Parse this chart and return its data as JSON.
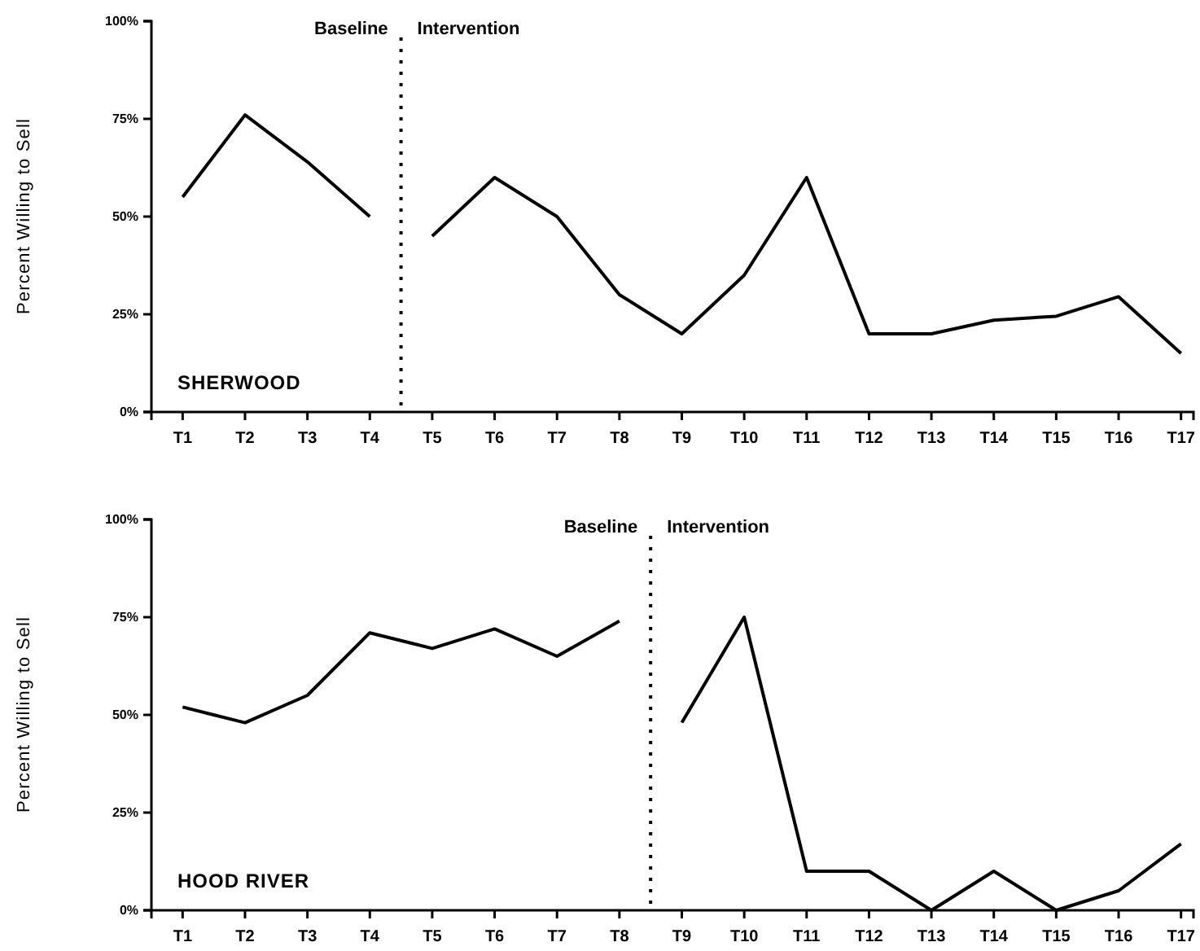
{
  "chart_data": [
    {
      "type": "line",
      "title": "SHERWOOD",
      "ylabel": "Percent Willing to Sell",
      "categories": [
        "T1",
        "T2",
        "T3",
        "T4",
        "T5",
        "T6",
        "T7",
        "T8",
        "T9",
        "T10",
        "T11",
        "T12",
        "T13",
        "T14",
        "T15",
        "T16",
        "T17"
      ],
      "ylim": [
        0,
        100
      ],
      "yticks": [
        {
          "value": 0,
          "label": "0%"
        },
        {
          "value": 25,
          "label": "25%"
        },
        {
          "value": 50,
          "label": "50%"
        },
        {
          "value": 75,
          "label": "75%"
        },
        {
          "value": 100,
          "label": "100%"
        }
      ],
      "grid": false,
      "marker": "none",
      "line_style": "solid",
      "series": [
        {
          "color": "#000000",
          "values": [
            55,
            76,
            64,
            50,
            null,
            null,
            null,
            null,
            null,
            null,
            null,
            null,
            null,
            null,
            null,
            null,
            null
          ]
        },
        {
          "color": "#000000",
          "values": [
            null,
            null,
            null,
            null,
            45,
            60,
            50,
            30,
            20,
            35,
            60,
            20,
            20,
            23.5,
            24.5,
            29.5,
            15
          ]
        }
      ],
      "annotations": [
        "Baseline",
        "Intervention"
      ]
    },
    {
      "type": "line",
      "title": "HOOD RIVER",
      "ylabel": "Percent Willing to Sell",
      "categories": [
        "T1",
        "T2",
        "T3",
        "T4",
        "T5",
        "T6",
        "T7",
        "T8",
        "T9",
        "T10",
        "T11",
        "T12",
        "T13",
        "T14",
        "T15",
        "T16",
        "T17"
      ],
      "ylim": [
        0,
        100
      ],
      "yticks": [
        {
          "value": 0,
          "label": "0%"
        },
        {
          "value": 25,
          "label": "25%"
        },
        {
          "value": 50,
          "label": "50%"
        },
        {
          "value": 75,
          "label": "75%"
        },
        {
          "value": 100,
          "label": "100%"
        }
      ],
      "grid": false,
      "marker": "none",
      "line_style": "solid",
      "series": [
        {
          "color": "#000000",
          "values": [
            52,
            48,
            55,
            71,
            67,
            72,
            65,
            74,
            null,
            null,
            null,
            null,
            null,
            null,
            null,
            null,
            null
          ]
        },
        {
          "color": "#000000",
          "values": [
            null,
            null,
            null,
            null,
            null,
            null,
            null,
            null,
            48,
            75,
            10,
            10,
            0,
            10,
            0,
            5,
            17
          ]
        }
      ],
      "annotations": [
        "Baseline",
        "Intervention"
      ]
    }
  ]
}
